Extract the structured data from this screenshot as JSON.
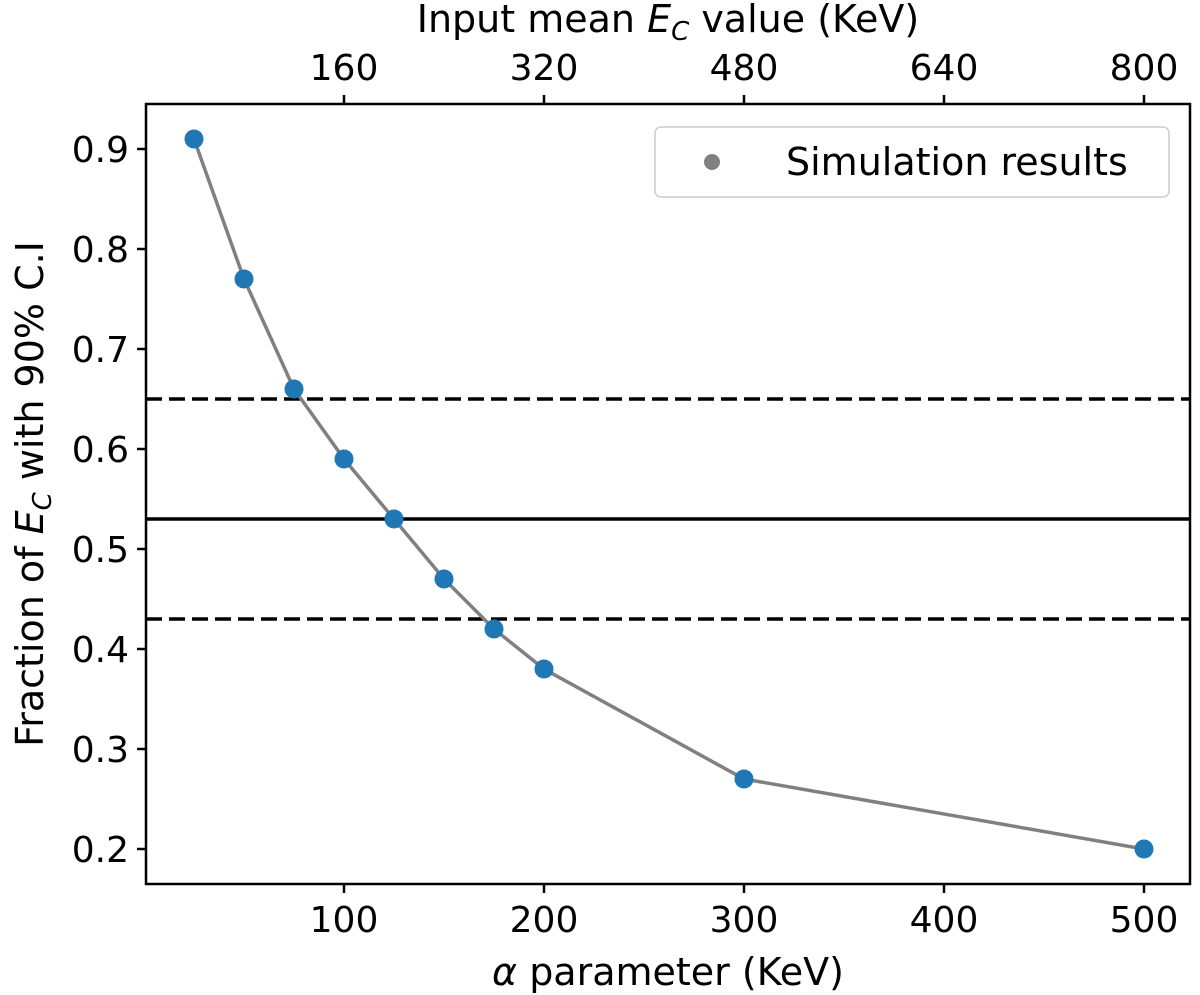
{
  "chart_data": {
    "type": "line",
    "title": "",
    "xlabel_prefix": "α",
    "xlabel_rest": " parameter (KeV)",
    "ylabel_prefix": "Fraction of ",
    "ylabel_symbol": "E",
    "ylabel_subscript": "C",
    "ylabel_suffix": " with 90% C.I",
    "top_xlabel_prefix": "Input mean ",
    "top_xlabel_symbol": "E",
    "top_xlabel_subscript": "C",
    "top_xlabel_suffix": " value (KeV)",
    "xlim": [
      1,
      523
    ],
    "ylim": [
      0.165,
      0.945
    ],
    "x_ticks": [
      100,
      200,
      300,
      400,
      500
    ],
    "x_tick_labels": [
      "100",
      "200",
      "300",
      "400",
      "500"
    ],
    "y_ticks": [
      0.2,
      0.3,
      0.4,
      0.5,
      0.6,
      0.7,
      0.8,
      0.9
    ],
    "y_tick_labels": [
      "0.2",
      "0.3",
      "0.4",
      "0.5",
      "0.6",
      "0.7",
      "0.8",
      "0.9"
    ],
    "top_x_ticks_at_alpha": [
      100,
      200,
      300,
      400,
      500
    ],
    "top_x_tick_labels": [
      "160",
      "320",
      "480",
      "640",
      "800"
    ],
    "series": [
      {
        "name": "Simulation results",
        "x": [
          25,
          50,
          75,
          100,
          125,
          150,
          175,
          200,
          300,
          500
        ],
        "y": [
          0.91,
          0.77,
          0.66,
          0.59,
          0.53,
          0.47,
          0.42,
          0.38,
          0.27,
          0.2
        ],
        "line_color": "#808080",
        "marker_color": "#1f77b4"
      }
    ],
    "reference_lines": [
      {
        "name": "reference-solid-line",
        "y": 0.53,
        "style": "solid",
        "color": "#000000"
      },
      {
        "name": "upper-dashed-line",
        "y": 0.65,
        "style": "dashed",
        "color": "#000000"
      },
      {
        "name": "lower-dashed-line",
        "y": 0.43,
        "style": "dashed",
        "color": "#000000"
      }
    ],
    "legend": {
      "label": "Simulation results",
      "placement": "top-right",
      "marker_color": "#808080"
    },
    "grid": false
  }
}
